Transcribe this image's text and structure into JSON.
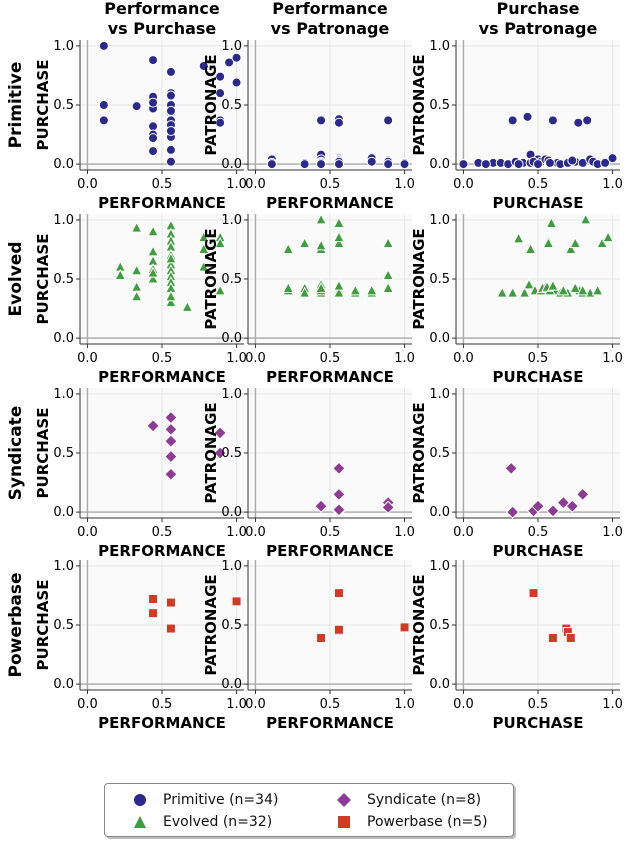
{
  "chart_data": {
    "type": "scatter",
    "column_titles": [
      [
        "Performance",
        "vs Purchase"
      ],
      [
        "Performance",
        "vs Patronage"
      ],
      [
        "Purchase",
        "vs Patronage"
      ]
    ],
    "columns": [
      {
        "xlabel": "PERFORMANCE",
        "ylabel": "PURCHASE",
        "x_key": "performance",
        "y_key": "purchase"
      },
      {
        "xlabel": "PERFORMANCE",
        "ylabel": "PATRONAGE",
        "x_key": "performance",
        "y_key": "patronage"
      },
      {
        "xlabel": "PURCHASE",
        "ylabel": "PATRONAGE",
        "x_key": "purchase",
        "y_key": "patronage"
      }
    ],
    "xlim": [
      -0.05,
      1.05
    ],
    "ylim": [
      -0.05,
      1.05
    ],
    "ticks": [
      0.0,
      0.5,
      1.0
    ],
    "tick_labels": [
      "0.0",
      "0.5",
      "1.0"
    ],
    "grid": true,
    "legend_position": "bottom",
    "series": [
      {
        "name": "Primitive",
        "legend": "Primitive (n=34)",
        "row_label": "Primitive",
        "color": "#2b2a8c",
        "marker": "circle",
        "panels": [
          [
            [
              0.11,
              1.0
            ],
            [
              0.11,
              0.5
            ],
            [
              0.11,
              0.37
            ],
            [
              0.33,
              0.49
            ],
            [
              0.44,
              0.57
            ],
            [
              0.44,
              0.47
            ],
            [
              0.44,
              0.32
            ],
            [
              0.44,
              0.25
            ],
            [
              0.44,
              0.22
            ],
            [
              0.44,
              0.88
            ],
            [
              0.44,
              0.11
            ],
            [
              0.56,
              0.78
            ],
            [
              0.56,
              0.6
            ],
            [
              0.56,
              0.58
            ],
            [
              0.56,
              0.5
            ],
            [
              0.56,
              0.43
            ],
            [
              0.56,
              0.38
            ],
            [
              0.56,
              0.37
            ],
            [
              0.56,
              0.25
            ],
            [
              0.56,
              0.23
            ],
            [
              0.56,
              0.12
            ],
            [
              0.56,
              0.02
            ],
            [
              0.78,
              0.83
            ],
            [
              0.89,
              0.74
            ],
            [
              0.89,
              0.6
            ],
            [
              0.89,
              0.37
            ],
            [
              0.89,
              0.35
            ],
            [
              0.95,
              0.86
            ],
            [
              1.0,
              0.69
            ],
            [
              1.0,
              0.9
            ],
            [
              0.56,
              0.33
            ],
            [
              0.56,
              0.28
            ],
            [
              0.44,
              0.52
            ],
            [
              0.56,
              0.45
            ]
          ],
          [
            [
              0.11,
              0.04
            ],
            [
              0.11,
              0.01
            ],
            [
              0.33,
              0.01
            ],
            [
              0.44,
              0.08
            ],
            [
              0.44,
              0.04
            ],
            [
              0.44,
              0.01
            ],
            [
              0.44,
              0.37
            ],
            [
              0.56,
              0.38
            ],
            [
              0.56,
              0.35
            ],
            [
              0.56,
              0.05
            ],
            [
              0.56,
              0.04
            ],
            [
              0.56,
              0.02
            ],
            [
              0.56,
              0.0
            ],
            [
              0.78,
              0.05
            ],
            [
              0.89,
              0.37
            ],
            [
              0.89,
              0.03
            ],
            [
              0.89,
              0.01
            ],
            [
              1.0,
              0.01
            ],
            [
              0.56,
              0.01
            ],
            [
              0.44,
              0.02
            ],
            [
              0.56,
              0.03
            ],
            [
              0.89,
              0.02
            ],
            [
              0.33,
              0.0
            ],
            [
              0.44,
              0.0
            ],
            [
              0.56,
              0.01
            ],
            [
              0.78,
              0.02
            ],
            [
              1.0,
              0.0
            ],
            [
              0.11,
              0.0
            ],
            [
              0.56,
              0.0
            ],
            [
              0.44,
              0.01
            ],
            [
              0.89,
              0.0
            ],
            [
              0.56,
              0.02
            ],
            [
              0.44,
              0.0
            ],
            [
              0.56,
              0.0
            ]
          ],
          [
            [
              0.0,
              0.0
            ],
            [
              0.1,
              0.01
            ],
            [
              0.2,
              0.01
            ],
            [
              0.25,
              0.01
            ],
            [
              0.3,
              0.0
            ],
            [
              0.33,
              0.37
            ],
            [
              0.35,
              0.02
            ],
            [
              0.4,
              0.01
            ],
            [
              0.43,
              0.4
            ],
            [
              0.45,
              0.08
            ],
            [
              0.45,
              0.01
            ],
            [
              0.5,
              0.04
            ],
            [
              0.52,
              0.02
            ],
            [
              0.55,
              0.04
            ],
            [
              0.57,
              0.03
            ],
            [
              0.6,
              0.37
            ],
            [
              0.63,
              0.01
            ],
            [
              0.65,
              0.0
            ],
            [
              0.7,
              0.01
            ],
            [
              0.75,
              0.02
            ],
            [
              0.77,
              0.35
            ],
            [
              0.8,
              0.01
            ],
            [
              0.83,
              0.37
            ],
            [
              0.85,
              0.04
            ],
            [
              0.87,
              0.02
            ],
            [
              0.9,
              0.0
            ],
            [
              1.0,
              0.05
            ],
            [
              0.37,
              0.0
            ],
            [
              0.47,
              0.02
            ],
            [
              0.58,
              0.01
            ],
            [
              0.73,
              0.03
            ],
            [
              0.95,
              0.01
            ],
            [
              0.15,
              0.0
            ],
            [
              0.5,
              0.0
            ]
          ]
        ]
      },
      {
        "name": "Evolved",
        "legend": "Evolved (n=32)",
        "row_label": "Evolved",
        "color": "#3f9c3f",
        "marker": "triangle",
        "panels": [
          [
            [
              0.22,
              0.6
            ],
            [
              0.22,
              0.53
            ],
            [
              0.33,
              0.93
            ],
            [
              0.33,
              0.43
            ],
            [
              0.33,
              0.35
            ],
            [
              0.44,
              0.9
            ],
            [
              0.44,
              0.73
            ],
            [
              0.44,
              0.65
            ],
            [
              0.44,
              0.58
            ],
            [
              0.44,
              0.5
            ],
            [
              0.56,
              0.95
            ],
            [
              0.56,
              0.88
            ],
            [
              0.56,
              0.82
            ],
            [
              0.56,
              0.77
            ],
            [
              0.56,
              0.7
            ],
            [
              0.56,
              0.62
            ],
            [
              0.56,
              0.57
            ],
            [
              0.56,
              0.52
            ],
            [
              0.56,
              0.47
            ],
            [
              0.56,
              0.42
            ],
            [
              0.56,
              0.3
            ],
            [
              0.67,
              0.26
            ],
            [
              0.78,
              0.85
            ],
            [
              0.78,
              0.75
            ],
            [
              0.78,
              0.6
            ],
            [
              0.89,
              0.85
            ],
            [
              0.89,
              0.8
            ],
            [
              0.89,
              0.4
            ],
            [
              0.56,
              0.67
            ],
            [
              0.44,
              0.55
            ],
            [
              0.56,
              0.35
            ],
            [
              0.33,
              0.57
            ]
          ],
          [
            [
              0.22,
              0.75
            ],
            [
              0.22,
              0.43
            ],
            [
              0.22,
              0.4
            ],
            [
              0.33,
              0.8
            ],
            [
              0.33,
              0.4
            ],
            [
              0.44,
              1.0
            ],
            [
              0.44,
              0.75
            ],
            [
              0.44,
              0.45
            ],
            [
              0.44,
              0.38
            ],
            [
              0.56,
              0.97
            ],
            [
              0.56,
              0.8
            ],
            [
              0.56,
              0.45
            ],
            [
              0.56,
              0.38
            ],
            [
              0.67,
              0.38
            ],
            [
              0.78,
              0.38
            ],
            [
              0.89,
              0.8
            ],
            [
              0.89,
              0.53
            ],
            [
              0.89,
              0.44
            ],
            [
              0.56,
              0.85
            ],
            [
              0.44,
              0.78
            ],
            [
              0.56,
              0.42
            ],
            [
              0.33,
              0.42
            ],
            [
              0.22,
              0.42
            ],
            [
              0.56,
              0.4
            ],
            [
              0.44,
              0.4
            ],
            [
              0.67,
              0.4
            ],
            [
              0.89,
              0.42
            ],
            [
              0.56,
              0.38
            ],
            [
              0.44,
              0.42
            ],
            [
              0.33,
              0.38
            ],
            [
              0.78,
              0.4
            ],
            [
              0.56,
              0.44
            ]
          ],
          [
            [
              0.26,
              0.38
            ],
            [
              0.33,
              0.38
            ],
            [
              0.37,
              0.84
            ],
            [
              0.41,
              0.38
            ],
            [
              0.44,
              0.45
            ],
            [
              0.45,
              0.75
            ],
            [
              0.48,
              0.4
            ],
            [
              0.52,
              0.4
            ],
            [
              0.55,
              0.43
            ],
            [
              0.57,
              0.82
            ],
            [
              0.59,
              0.97
            ],
            [
              0.6,
              0.42
            ],
            [
              0.62,
              0.4
            ],
            [
              0.65,
              0.38
            ],
            [
              0.7,
              0.38
            ],
            [
              0.72,
              0.75
            ],
            [
              0.75,
              0.8
            ],
            [
              0.78,
              0.4
            ],
            [
              0.8,
              0.38
            ],
            [
              0.82,
              1.0
            ],
            [
              0.85,
              0.38
            ],
            [
              0.9,
              0.4
            ],
            [
              0.93,
              0.8
            ],
            [
              0.97,
              0.85
            ],
            [
              0.53,
              0.42
            ],
            [
              0.58,
              0.4
            ],
            [
              0.67,
              0.4
            ],
            [
              0.75,
              0.42
            ],
            [
              0.56,
              0.43
            ],
            [
              0.57,
              0.8
            ],
            [
              0.8,
              0.4
            ],
            [
              0.6,
              0.44
            ]
          ]
        ]
      },
      {
        "name": "Syndicate",
        "legend": "Syndicate (n=8)",
        "row_label": "Syndicate",
        "color": "#8e3b96",
        "marker": "diamond",
        "panels": [
          [
            [
              0.44,
              0.73
            ],
            [
              0.56,
              0.8
            ],
            [
              0.56,
              0.6
            ],
            [
              0.56,
              0.47
            ],
            [
              0.56,
              0.32
            ],
            [
              0.89,
              0.67
            ],
            [
              0.89,
              0.5
            ],
            [
              0.56,
              0.7
            ]
          ],
          [
            [
              0.44,
              0.05
            ],
            [
              0.56,
              0.37
            ],
            [
              0.56,
              0.15
            ],
            [
              0.56,
              0.01
            ],
            [
              0.89,
              0.08
            ],
            [
              0.89,
              0.04
            ],
            [
              0.56,
              0.03
            ],
            [
              0.56,
              0.02
            ]
          ],
          [
            [
              0.32,
              0.37
            ],
            [
              0.33,
              0.0
            ],
            [
              0.47,
              0.01
            ],
            [
              0.5,
              0.05
            ],
            [
              0.6,
              0.01
            ],
            [
              0.67,
              0.08
            ],
            [
              0.73,
              0.05
            ],
            [
              0.8,
              0.15
            ]
          ]
        ]
      },
      {
        "name": "Powerbase",
        "legend": "Powerbase (n=5)",
        "row_label": "Powerbase",
        "color": "#d13a25",
        "marker": "square",
        "panels": [
          [
            [
              0.44,
              0.72
            ],
            [
              0.44,
              0.6
            ],
            [
              0.56,
              0.69
            ],
            [
              0.56,
              0.47
            ],
            [
              1.0,
              0.7
            ]
          ],
          [
            [
              0.44,
              0.39
            ],
            [
              0.56,
              0.77
            ],
            [
              0.56,
              0.45
            ],
            [
              1.0,
              0.48
            ],
            [
              0.56,
              0.46
            ]
          ],
          [
            [
              0.47,
              0.77
            ],
            [
              0.6,
              0.39
            ],
            [
              0.69,
              0.47
            ],
            [
              0.7,
              0.44
            ],
            [
              0.72,
              0.39
            ]
          ]
        ]
      }
    ]
  }
}
